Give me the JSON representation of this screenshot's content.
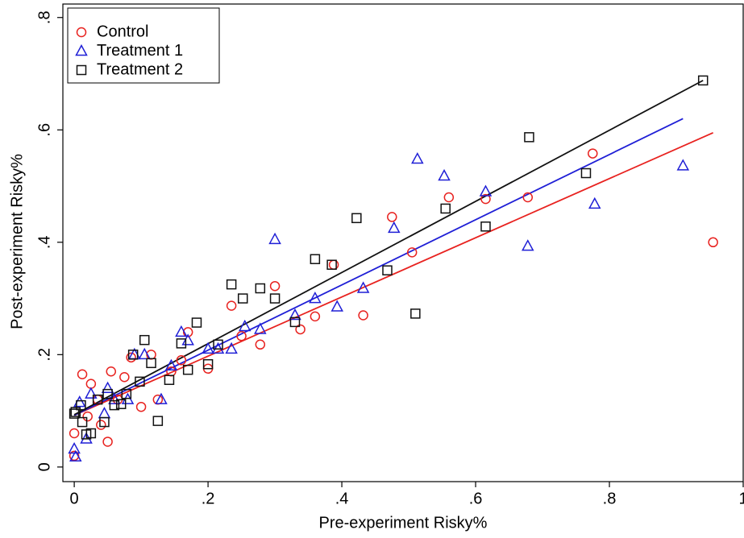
{
  "chart_data": {
    "type": "scatter",
    "xlabel": "Pre-experiment Risky%",
    "ylabel": "Post-experiment Risky%",
    "xlim": [
      -0.017,
      1.0
    ],
    "ylim": [
      -0.026,
      0.824
    ],
    "xticks": [
      0,
      {
        "value": 0.2,
        "label": ".2"
      },
      {
        "value": 0.4,
        "label": ".4"
      },
      {
        "value": 0.6,
        "label": ".6"
      },
      {
        "value": 0.8,
        "label": ".8"
      },
      1
    ],
    "yticks": [
      0,
      {
        "value": 0.2,
        "label": ".2"
      },
      {
        "value": 0.4,
        "label": ".4"
      },
      {
        "value": 0.6,
        "label": ".6"
      },
      {
        "value": 0.8,
        "label": ".8"
      }
    ],
    "legend": "top-left",
    "series": [
      {
        "name": "Control",
        "color": "#e8221f",
        "marker": "circle",
        "x": [
          0.0,
          0.0,
          0.012,
          0.025,
          0.02,
          0.04,
          0.05,
          0.055,
          0.075,
          0.085,
          0.1,
          0.115,
          0.125,
          0.145,
          0.16,
          0.17,
          0.2,
          0.235,
          0.25,
          0.278,
          0.3,
          0.338,
          0.36,
          0.388,
          0.432,
          0.475,
          0.505,
          0.56,
          0.615,
          0.678,
          0.775,
          0.955,
          0.035,
          0.065
        ],
        "y": [
          0.02,
          0.06,
          0.165,
          0.148,
          0.09,
          0.075,
          0.045,
          0.17,
          0.16,
          0.195,
          0.107,
          0.2,
          0.12,
          0.17,
          0.19,
          0.24,
          0.175,
          0.287,
          0.233,
          0.218,
          0.322,
          0.245,
          0.268,
          0.36,
          0.27,
          0.445,
          0.382,
          0.48,
          0.477,
          0.48,
          0.558,
          0.4,
          0.12,
          0.12
        ]
      },
      {
        "name": "Treatment 1",
        "color": "#1f1fd6",
        "marker": "triangle",
        "x": [
          0.0,
          0.002,
          0.008,
          0.018,
          0.025,
          0.045,
          0.05,
          0.06,
          0.08,
          0.09,
          0.105,
          0.13,
          0.145,
          0.16,
          0.17,
          0.2,
          0.215,
          0.235,
          0.255,
          0.278,
          0.3,
          0.33,
          0.36,
          0.393,
          0.432,
          0.478,
          0.513,
          0.553,
          0.615,
          0.678,
          0.778,
          0.91
        ],
        "y": [
          0.032,
          0.018,
          0.115,
          0.05,
          0.13,
          0.095,
          0.14,
          0.12,
          0.12,
          0.2,
          0.2,
          0.12,
          0.18,
          0.24,
          0.225,
          0.21,
          0.21,
          0.21,
          0.25,
          0.245,
          0.405,
          0.27,
          0.3,
          0.285,
          0.318,
          0.425,
          0.548,
          0.518,
          0.49,
          0.393,
          0.468,
          0.536
        ]
      },
      {
        "name": "Treatment 2",
        "color": "#111111",
        "marker": "square",
        "x": [
          0.0,
          0.002,
          0.01,
          0.012,
          0.018,
          0.025,
          0.035,
          0.045,
          0.05,
          0.06,
          0.07,
          0.078,
          0.088,
          0.098,
          0.105,
          0.115,
          0.125,
          0.142,
          0.16,
          0.17,
          0.183,
          0.2,
          0.215,
          0.235,
          0.252,
          0.278,
          0.3,
          0.33,
          0.36,
          0.385,
          0.422,
          0.468,
          0.51,
          0.555,
          0.615,
          0.68,
          0.765,
          0.94
        ],
        "y": [
          0.095,
          0.098,
          0.11,
          0.08,
          0.058,
          0.06,
          0.12,
          0.08,
          0.13,
          0.11,
          0.112,
          0.13,
          0.2,
          0.152,
          0.226,
          0.185,
          0.082,
          0.155,
          0.22,
          0.173,
          0.257,
          0.183,
          0.218,
          0.325,
          0.3,
          0.318,
          0.3,
          0.258,
          0.37,
          0.36,
          0.443,
          0.35,
          0.273,
          0.46,
          0.428,
          0.587,
          0.523,
          0.688
        ]
      }
    ],
    "fit_lines": [
      {
        "color": "#e8221f",
        "x": [
          0,
          0.955
        ],
        "y": [
          0.092,
          0.595
        ]
      },
      {
        "color": "#1f1fd6",
        "x": [
          0,
          0.91
        ],
        "y": [
          0.092,
          0.62
        ]
      },
      {
        "color": "#111111",
        "x": [
          0,
          0.94
        ],
        "y": [
          0.093,
          0.688
        ]
      }
    ]
  }
}
